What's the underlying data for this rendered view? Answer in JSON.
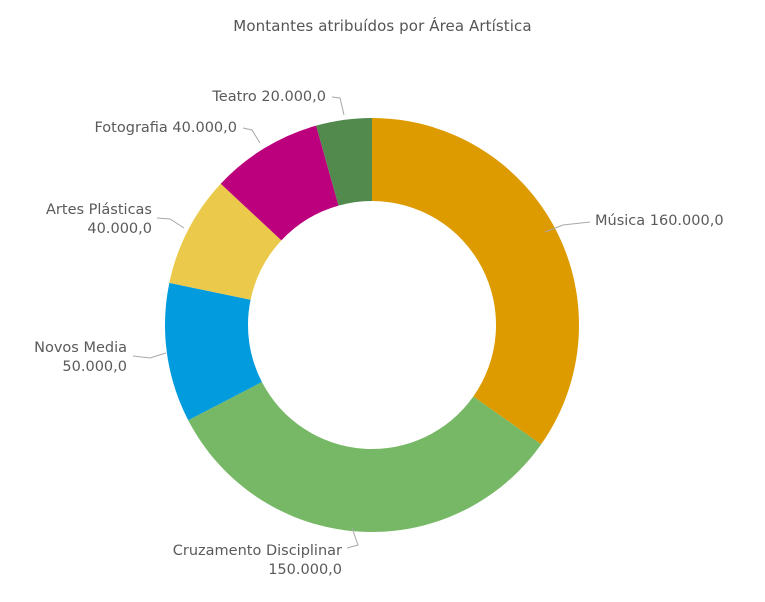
{
  "chart_data": {
    "type": "pie",
    "variant": "donut",
    "title": "Montantes atribuídos por Área Artística",
    "slices": [
      {
        "label": "Música",
        "value": 160000,
        "value_label": "160.000,0",
        "color": "#DE9B00"
      },
      {
        "label": "Cruzamento Disciplinar",
        "value": 150000,
        "value_label": "150.000,0",
        "color": "#76B865"
      },
      {
        "label": "Novos Media",
        "value": 50000,
        "value_label": "50.000,0",
        "color": "#029CDE"
      },
      {
        "label": "Artes Plásticas",
        "value": 40000,
        "value_label": "40.000,0",
        "color": "#EBC94A"
      },
      {
        "label": "Fotografia",
        "value": 40000,
        "value_label": "40.000,0",
        "color": "#BC007D"
      },
      {
        "label": "Teatro",
        "value": 20000,
        "value_label": "20.000,0",
        "color": "#52894D"
      }
    ],
    "start_angle_deg": 0,
    "direction": "clockwise",
    "legend": "none",
    "data_labels": "outside"
  }
}
